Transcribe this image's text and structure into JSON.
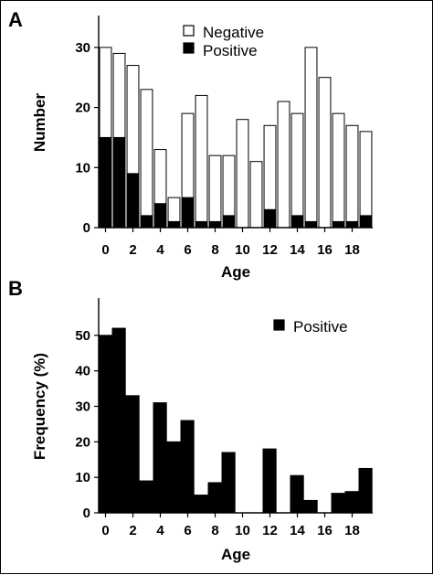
{
  "figure": {
    "colors": {
      "positive": "#000000",
      "negative": "#ffffff",
      "axis": "#000000"
    }
  },
  "chart_data": [
    {
      "panel_label": "A",
      "type": "bar",
      "stacked": true,
      "x": [
        0,
        1,
        2,
        3,
        4,
        5,
        6,
        7,
        8,
        9,
        10,
        11,
        12,
        13,
        14,
        15,
        16,
        17,
        18,
        19
      ],
      "series": [
        {
          "name": "Positive",
          "color": "#000000",
          "values": [
            15,
            15,
            9,
            2,
            4,
            1,
            5,
            1,
            1,
            2,
            0,
            0,
            3,
            0,
            2,
            1,
            0,
            1,
            1,
            2
          ]
        },
        {
          "name": "Negative",
          "color": "#ffffff",
          "values": [
            15,
            14,
            18,
            21,
            9,
            4,
            14,
            21,
            11,
            10,
            18,
            11,
            14,
            21,
            17,
            29,
            25,
            18,
            16,
            14
          ]
        }
      ],
      "xlabel": "Age",
      "ylabel": "Number",
      "ylim": [
        0,
        35
      ],
      "yticks": [
        "0",
        "10",
        "20",
        "30"
      ],
      "xticks": [
        "0",
        "2",
        "4",
        "6",
        "8",
        "10",
        "12",
        "14",
        "16",
        "18"
      ],
      "legend": [
        "Negative",
        "Positive"
      ],
      "legend_position": "top-center",
      "grid": false
    },
    {
      "panel_label": "B",
      "type": "bar",
      "x": [
        0,
        1,
        2,
        3,
        4,
        5,
        6,
        7,
        8,
        9,
        10,
        11,
        12,
        13,
        14,
        15,
        16,
        17,
        18,
        19
      ],
      "series": [
        {
          "name": "Positive",
          "color": "#000000",
          "values": [
            50,
            52,
            33,
            9,
            31,
            20,
            26,
            5,
            8.5,
            17,
            0,
            0,
            18,
            0,
            10.5,
            3.5,
            0,
            5.5,
            6,
            12.5
          ]
        }
      ],
      "xlabel": "Age",
      "ylabel": "Frequency (%)",
      "ylim": [
        0,
        60
      ],
      "yticks": [
        "0",
        "10",
        "20",
        "30",
        "40",
        "50"
      ],
      "xticks": [
        "0",
        "2",
        "4",
        "6",
        "8",
        "10",
        "12",
        "14",
        "16",
        "18"
      ],
      "legend": [
        "Positive"
      ],
      "legend_position": "top-right",
      "grid": false
    }
  ]
}
